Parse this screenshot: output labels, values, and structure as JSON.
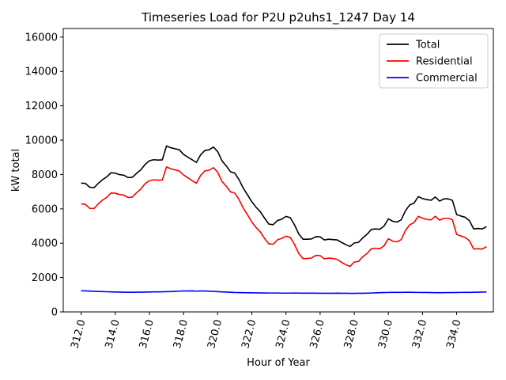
{
  "chart_data": {
    "type": "line",
    "title": "Timeseries Load for P2U p2uhs1_1247  Day 14",
    "xlabel": "Hour of Year",
    "ylabel": "kW total",
    "xlim": [
      310.95,
      336.15
    ],
    "ylim": [
      0,
      16500
    ],
    "xticks": [
      312,
      314,
      316,
      318,
      320,
      322,
      324,
      326,
      328,
      330,
      332,
      334
    ],
    "xtick_labels": [
      "312.0",
      "314.0",
      "316.0",
      "318.0",
      "320.0",
      "322.0",
      "324.0",
      "326.0",
      "328.0",
      "330.0",
      "332.0",
      "334.0"
    ],
    "yticks": [
      0,
      2000,
      4000,
      6000,
      8000,
      10000,
      12000,
      14000,
      16000
    ],
    "ytick_labels": [
      "0",
      "2000",
      "4000",
      "6000",
      "8000",
      "10000",
      "12000",
      "14000",
      "16000"
    ],
    "legend_position": "top-right",
    "x": [
      312.0,
      312.25,
      312.5,
      312.75,
      313.0,
      313.25,
      313.5,
      313.75,
      314.0,
      314.25,
      314.5,
      314.75,
      315.0,
      315.25,
      315.5,
      315.75,
      316.0,
      316.25,
      316.5,
      316.75,
      317.0,
      317.25,
      317.5,
      317.75,
      318.0,
      318.25,
      318.5,
      318.75,
      319.0,
      319.25,
      319.5,
      319.75,
      320.0,
      320.25,
      320.5,
      320.75,
      321.0,
      321.25,
      321.5,
      321.75,
      322.0,
      322.25,
      322.5,
      322.75,
      323.0,
      323.25,
      323.5,
      323.75,
      324.0,
      324.25,
      324.5,
      324.75,
      325.0,
      325.25,
      325.5,
      325.75,
      326.0,
      326.25,
      326.5,
      326.75,
      327.0,
      327.25,
      327.5,
      327.75,
      328.0,
      328.25,
      328.5,
      328.75,
      329.0,
      329.25,
      329.5,
      329.75,
      330.0,
      330.25,
      330.5,
      330.75,
      331.0,
      331.25,
      331.5,
      331.75,
      332.0,
      332.25,
      332.5,
      332.75,
      333.0,
      333.25,
      333.5,
      333.75,
      334.0,
      334.25,
      334.5,
      334.75,
      335.0,
      335.25,
      335.5,
      335.75
    ],
    "series": [
      {
        "name": "Total",
        "color": "#000000",
        "values": [
          7500,
          7480,
          7260,
          7230,
          7480,
          7700,
          7860,
          8100,
          8080,
          7990,
          7960,
          7820,
          7840,
          8070,
          8280,
          8590,
          8800,
          8860,
          8840,
          8850,
          9660,
          9560,
          9500,
          9440,
          9170,
          9010,
          8860,
          8700,
          9150,
          9400,
          9440,
          9600,
          9330,
          8800,
          8500,
          8160,
          8080,
          7700,
          7200,
          6810,
          6410,
          6090,
          5830,
          5450,
          5110,
          5080,
          5320,
          5400,
          5560,
          5490,
          5070,
          4540,
          4230,
          4230,
          4250,
          4380,
          4370,
          4190,
          4230,
          4210,
          4190,
          4050,
          3920,
          3810,
          4010,
          4050,
          4310,
          4520,
          4800,
          4830,
          4810,
          5000,
          5420,
          5280,
          5230,
          5360,
          5890,
          6230,
          6330,
          6710,
          6600,
          6540,
          6500,
          6690,
          6450,
          6580,
          6580,
          6500,
          5670,
          5580,
          5510,
          5310,
          4830,
          4860,
          4830,
          4970
        ]
      },
      {
        "name": "Residential",
        "color": "#ff0000",
        "values": [
          6290,
          6260,
          6030,
          6020,
          6290,
          6510,
          6670,
          6920,
          6910,
          6830,
          6800,
          6660,
          6690,
          6940,
          7160,
          7470,
          7640,
          7690,
          7670,
          7670,
          8440,
          8330,
          8270,
          8200,
          7970,
          7810,
          7640,
          7490,
          7950,
          8210,
          8250,
          8400,
          8130,
          7600,
          7320,
          6990,
          6920,
          6540,
          6040,
          5650,
          5230,
          4910,
          4650,
          4270,
          3960,
          3940,
          4200,
          4280,
          4410,
          4340,
          3930,
          3400,
          3100,
          3110,
          3140,
          3290,
          3280,
          3090,
          3130,
          3110,
          3060,
          2890,
          2750,
          2650,
          2900,
          2940,
          3210,
          3400,
          3680,
          3710,
          3680,
          3850,
          4260,
          4120,
          4080,
          4210,
          4740,
          5070,
          5200,
          5560,
          5460,
          5380,
          5360,
          5570,
          5340,
          5450,
          5450,
          5370,
          4510,
          4420,
          4330,
          4140,
          3660,
          3680,
          3660,
          3800
        ]
      },
      {
        "name": "Commercial",
        "color": "#0000ff",
        "values": [
          1230,
          1225,
          1215,
          1200,
          1190,
          1185,
          1175,
          1165,
          1160,
          1155,
          1150,
          1145,
          1145,
          1150,
          1150,
          1155,
          1160,
          1165,
          1165,
          1170,
          1180,
          1185,
          1195,
          1210,
          1220,
          1220,
          1225,
          1210,
          1220,
          1220,
          1205,
          1195,
          1180,
          1165,
          1155,
          1145,
          1130,
          1125,
          1120,
          1115,
          1115,
          1110,
          1105,
          1105,
          1100,
          1100,
          1100,
          1095,
          1095,
          1095,
          1100,
          1095,
          1090,
          1090,
          1090,
          1090,
          1085,
          1085,
          1085,
          1085,
          1090,
          1085,
          1085,
          1080,
          1080,
          1085,
          1085,
          1090,
          1100,
          1110,
          1120,
          1125,
          1135,
          1140,
          1140,
          1140,
          1145,
          1145,
          1140,
          1135,
          1130,
          1130,
          1125,
          1120,
          1120,
          1120,
          1125,
          1125,
          1130,
          1135,
          1140,
          1140,
          1145,
          1150,
          1155,
          1160
        ]
      }
    ]
  }
}
